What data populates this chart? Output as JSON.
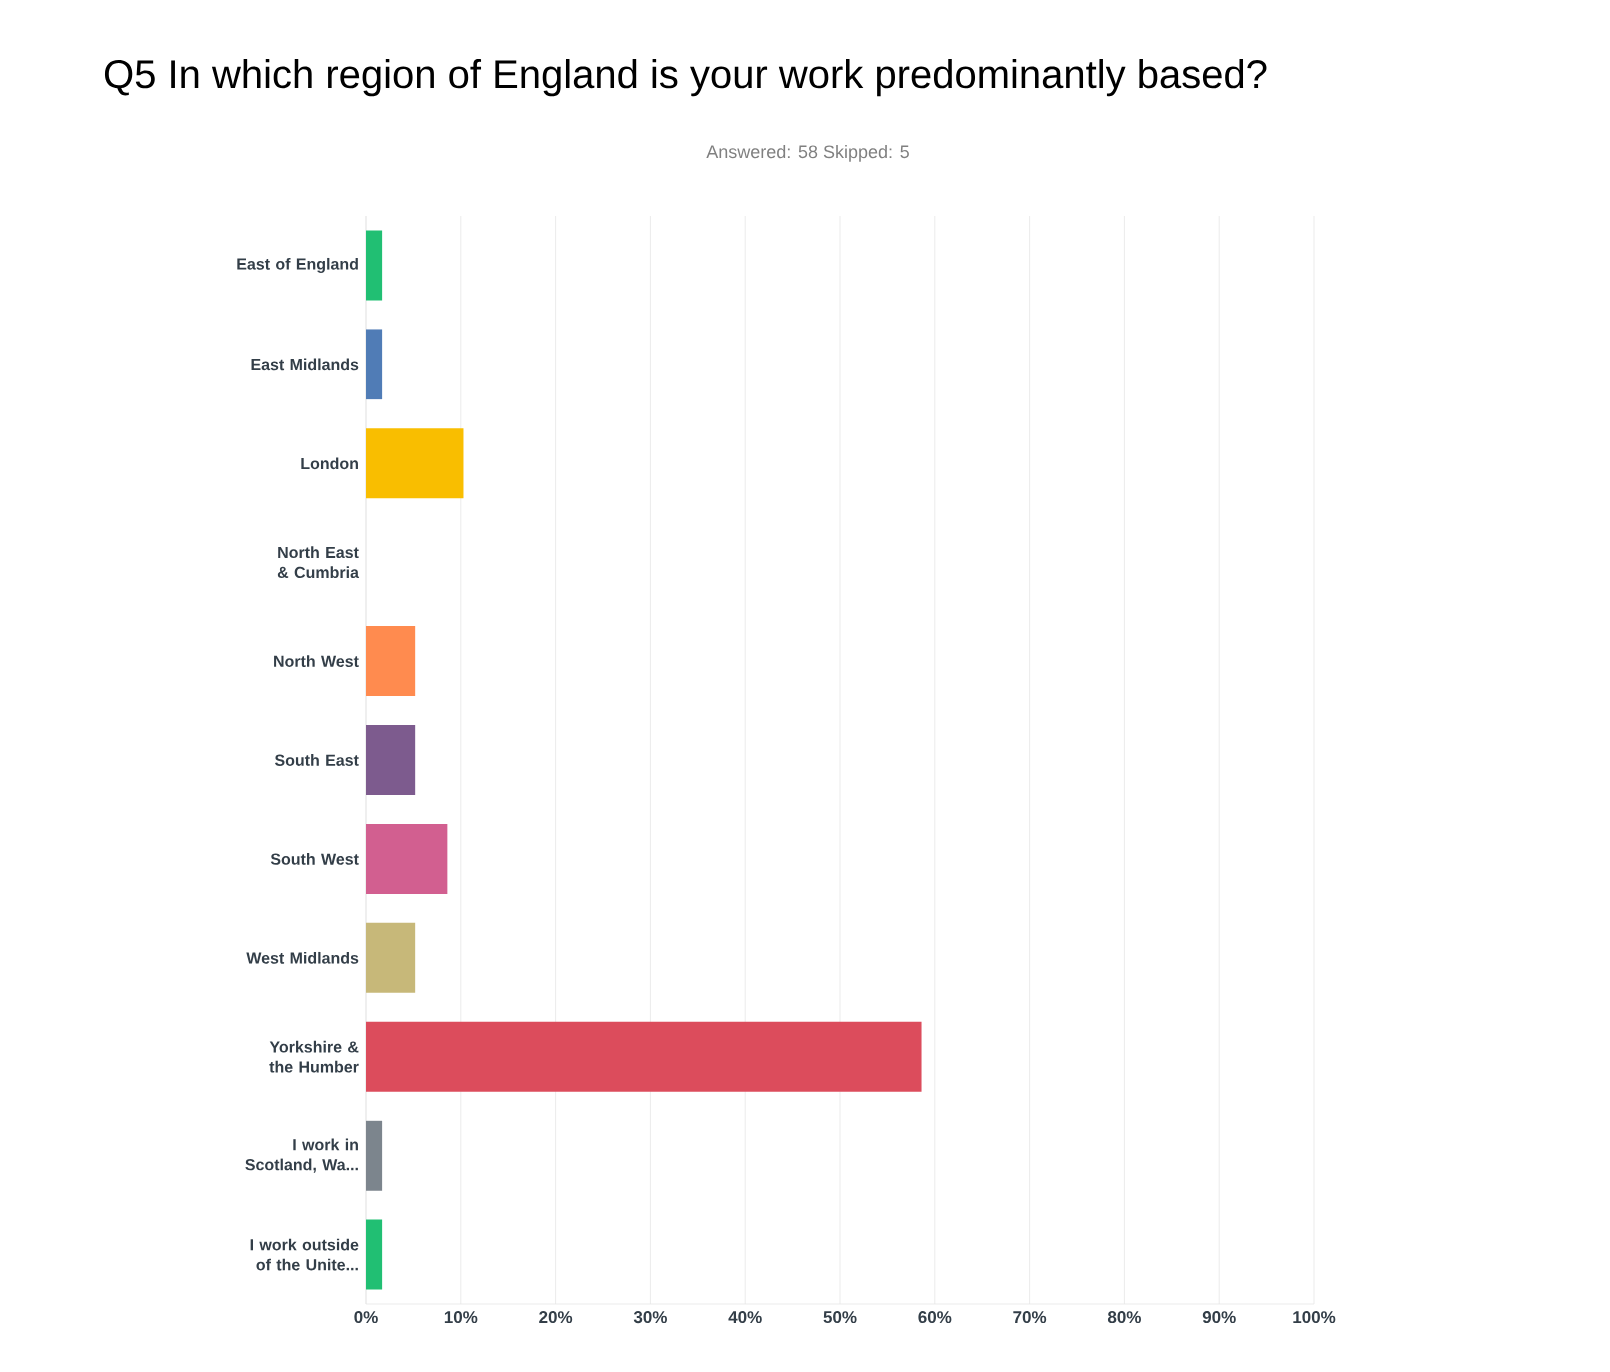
{
  "chart_data": {
    "type": "bar",
    "orientation": "horizontal",
    "title": "Q5 In which region of England is your work predominantly based?",
    "subtitle": "Answered: 58    Skipped: 5",
    "categories": [
      "East of England",
      "East Midlands",
      "London",
      "North East & Cumbria",
      "North West",
      "South East",
      "South West",
      "West Midlands",
      "Yorkshire & the Humber",
      "I work in Scotland, Wa...",
      "I work outside of the Unite..."
    ],
    "values": [
      1.7,
      1.7,
      10.3,
      0,
      5.2,
      5.2,
      8.6,
      5.2,
      58.6,
      1.7,
      1.7
    ],
    "colors": [
      "#21bf73",
      "#507cb6",
      "#f9be00",
      "#6bc8cd",
      "#ff8b4f",
      "#7d5b8e",
      "#d25f90",
      "#c7b879",
      "#dc4c5c",
      "#7c858d",
      "#21bf73"
    ],
    "xlim": [
      0,
      100
    ],
    "xticks": [
      {
        "value": 0,
        "label": "0%"
      },
      {
        "value": 10,
        "label": "10%"
      },
      {
        "value": 20,
        "label": "20%"
      },
      {
        "value": 30,
        "label": "30%"
      },
      {
        "value": 40,
        "label": "40%"
      },
      {
        "value": 50,
        "label": "50%"
      },
      {
        "value": 60,
        "label": "60%"
      },
      {
        "value": 70,
        "label": "70%"
      },
      {
        "value": 80,
        "label": "80%"
      },
      {
        "value": 90,
        "label": "90%"
      },
      {
        "value": 100,
        "label": "100%"
      }
    ],
    "grid": "x"
  }
}
